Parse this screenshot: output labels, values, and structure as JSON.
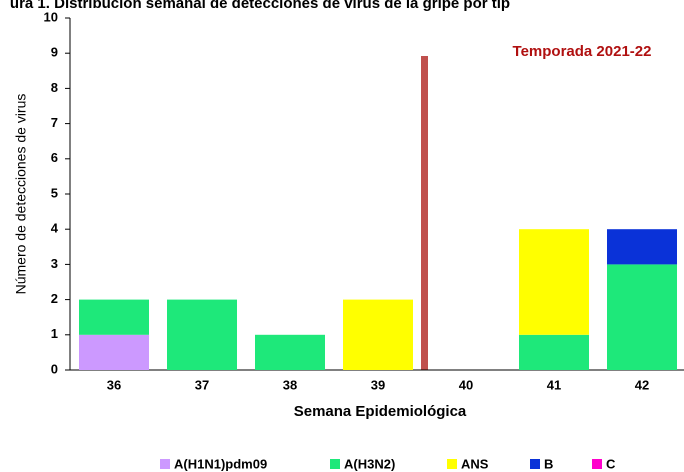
{
  "chart_data": {
    "type": "stacked_bar",
    "title": "ura 1. Distribución semanal de detecciones de virus de la gripe por tip",
    "annotation": "Temporada 2021-22",
    "x_label": "Semana Epidemiológica",
    "y_label": "Número de detecciones de virus",
    "categories": [
      "36",
      "37",
      "38",
      "39",
      "40",
      "41",
      "42"
    ],
    "series": [
      {
        "name": "A(H1N1)pdm09",
        "color": "#cc99ff",
        "values": [
          1,
          0,
          0,
          0,
          0,
          0,
          0
        ]
      },
      {
        "name": "A(H3N2)",
        "color": "#1ee87a",
        "values": [
          1,
          2,
          1,
          0,
          0,
          1,
          3
        ]
      },
      {
        "name": "ANS",
        "color": "#ffff00",
        "values": [
          0,
          0,
          0,
          2,
          0,
          3,
          0
        ]
      },
      {
        "name": "B",
        "color": "#0a32d8",
        "values": [
          0,
          0,
          0,
          0,
          0,
          0,
          1
        ]
      },
      {
        "name": "C",
        "color": "#ff00cc",
        "values": [
          0,
          0,
          0,
          0,
          0,
          0,
          0
        ]
      }
    ],
    "ylim": [
      0,
      10
    ],
    "yticks": [
      0,
      1,
      2,
      3,
      4,
      5,
      6,
      7,
      8,
      9,
      10
    ],
    "legend": "bottom"
  }
}
